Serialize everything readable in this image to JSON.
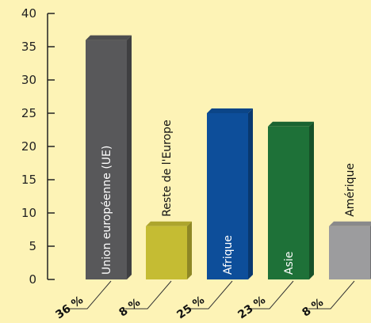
{
  "chart_data": {
    "type": "bar",
    "categories": [
      "Union européenne (UE)",
      "Reste de l'Europe",
      "Afrique",
      "Asie",
      "Amérique"
    ],
    "values": [
      36,
      8,
      25,
      23,
      8
    ],
    "value_labels": [
      "36 %",
      "8 %",
      "25 %",
      "23 %",
      "8 %"
    ],
    "ylim": [
      0,
      40
    ],
    "yticks": [
      0,
      5,
      10,
      15,
      20,
      25,
      30,
      35,
      40
    ],
    "grid": false,
    "colors": {
      "bars": [
        "#58585a",
        "#c5bc33",
        "#0d4e9a",
        "#1e7138",
        "#9c9c9e"
      ],
      "axis": "#222222",
      "background": "#fdf3b6"
    },
    "label_inside": [
      true,
      false,
      true,
      true,
      false
    ]
  }
}
